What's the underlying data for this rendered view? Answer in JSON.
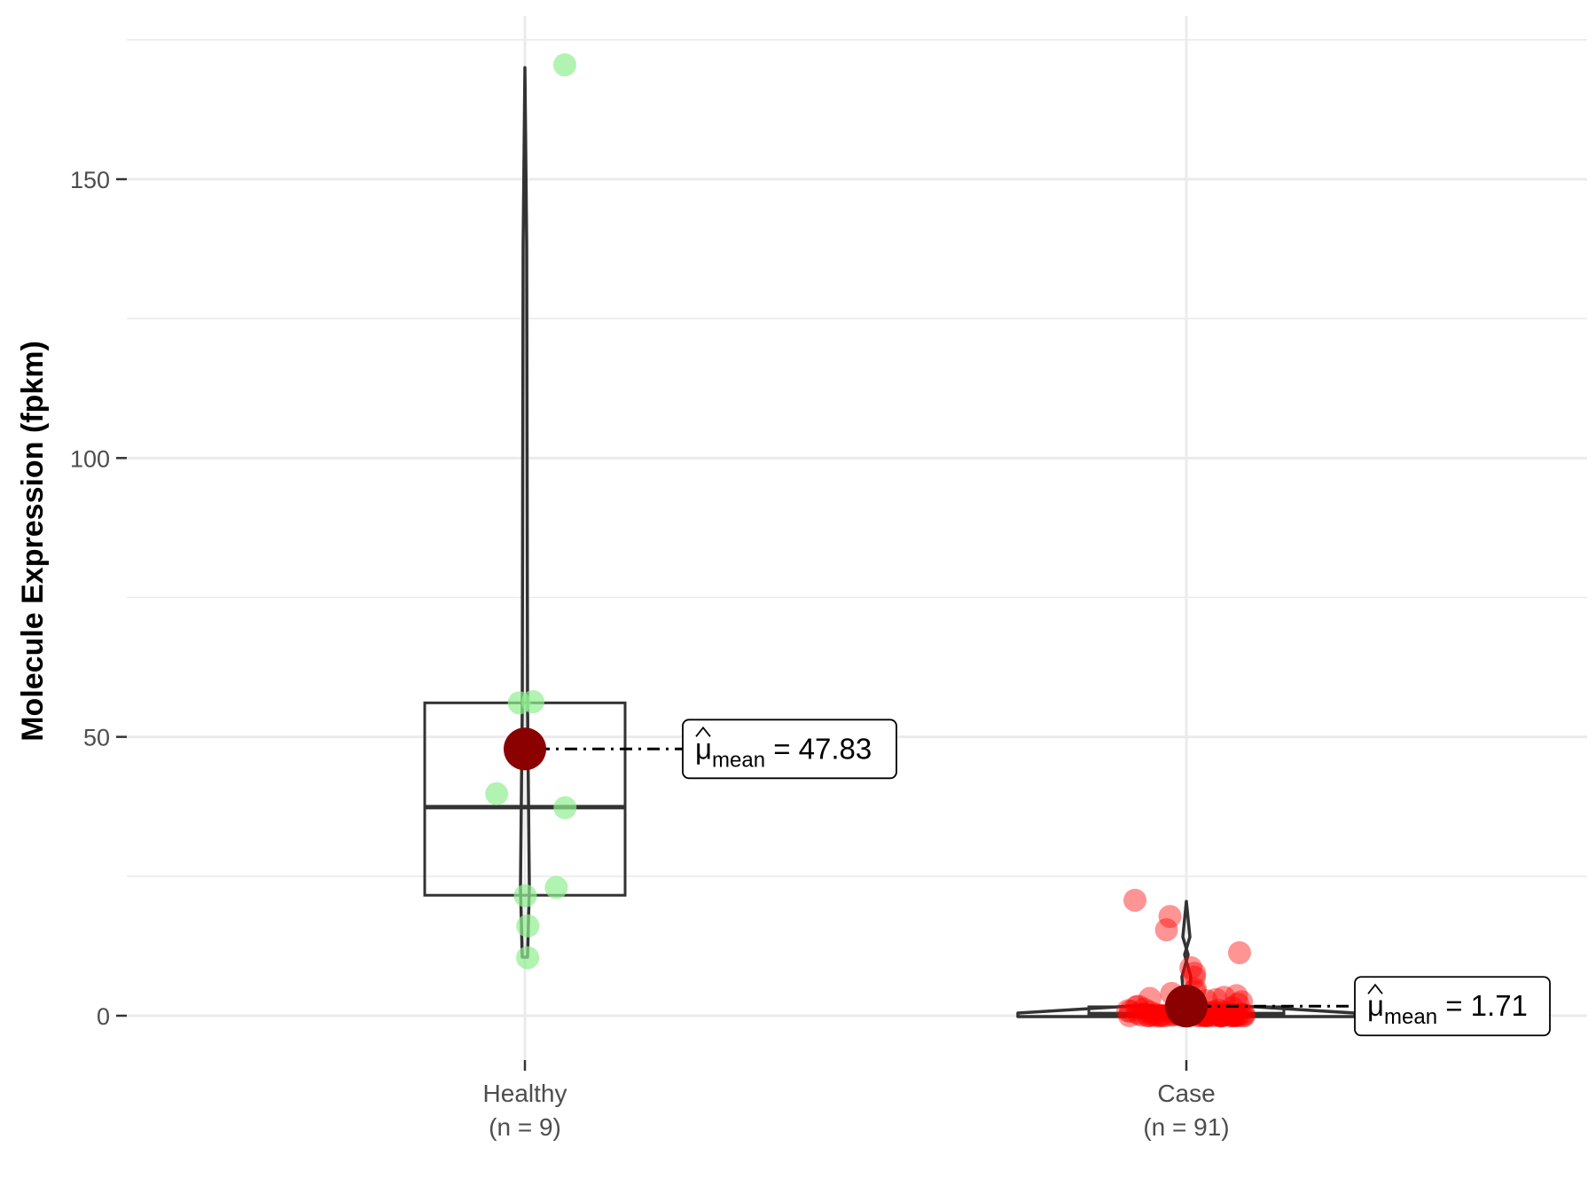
{
  "chart_data": {
    "type": "box",
    "ylabel": "Molecule Expression (fpkm)",
    "xlabel": "",
    "ylim": [
      -8,
      180
    ],
    "y_ticks": [
      0,
      50,
      100,
      150
    ],
    "y_minor_ticks": [
      25,
      75,
      125,
      175
    ],
    "grid": true,
    "categories": [
      {
        "name": "Healthy",
        "n_label": "(n = 9)",
        "color": "#90ee90",
        "box": {
          "q1": 21.6,
          "median": 37.4,
          "q3": 56.1
        },
        "violin_range": [
          10.5,
          170
        ],
        "points": [
          170.5,
          56.3,
          56.1,
          39.8,
          37.3,
          23.0,
          21.5,
          16.1,
          10.4
        ],
        "mean": 47.83,
        "mean_label": "47.83"
      },
      {
        "name": "Case",
        "n_label": "(n = 91)",
        "color": "#ff0000",
        "box": {
          "q1": 0.1,
          "median": 0.3,
          "q3": 1.6
        },
        "violin_range": [
          0,
          20.5
        ],
        "points": [
          20.7,
          17.8,
          15.4,
          11.3,
          8.6,
          7.6,
          6.9,
          4.8,
          4.4,
          4.0,
          3.6,
          3.3,
          3.1,
          2.9,
          2.7,
          2.5,
          2.3,
          2.1,
          2.0,
          1.9,
          1.8,
          1.7,
          1.6,
          1.5,
          1.4,
          1.3,
          1.2,
          1.1,
          1.0,
          0.9,
          0.9,
          0.8,
          0.8,
          0.7,
          0.7,
          0.6,
          0.6,
          0.5,
          0.5,
          0.5,
          0.4,
          0.4,
          0.4,
          0.3,
          0.3,
          0.3,
          0.3,
          0.2,
          0.2,
          0.2,
          0.2,
          0.2,
          0.1,
          0.1,
          0.1,
          0.1,
          0.1,
          0.1,
          0.1,
          0.05,
          0.05,
          0.05,
          0.05,
          0.05,
          0.05,
          0.05,
          0.0,
          0.0,
          0.0,
          0.0,
          0.0,
          0.0,
          0.0,
          0.0,
          0.0,
          0.0,
          0.0,
          0.0,
          0.0,
          0.0,
          0.0,
          0.0,
          0.0,
          0.0,
          0.0,
          0.0,
          0.0,
          0.0,
          0.0,
          0.0,
          0.0
        ],
        "mean": 1.71,
        "mean_label": "1.71"
      }
    ],
    "mean_marker_color": "#8b0000",
    "mean_symbol": "μ",
    "mean_subscript": "mean"
  }
}
